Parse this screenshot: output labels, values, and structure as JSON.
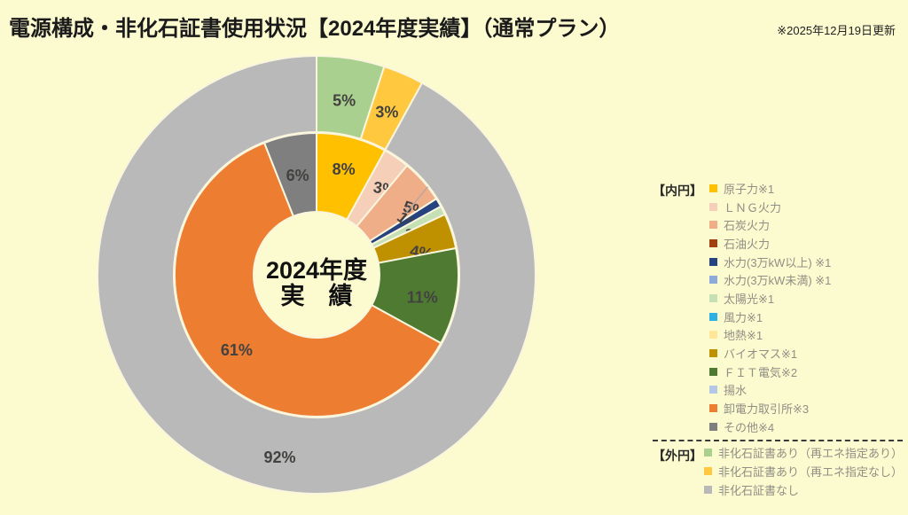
{
  "title": "電源構成・非化石証書使用状況【2024年度実績】（通常プラン）",
  "update_note": "※2025年12月19日更新",
  "center_label": {
    "line1": "2024年度",
    "line2": "実　績"
  },
  "legend": {
    "inner_group_label": "【内円】",
    "outer_group_label": "【外円】"
  },
  "colors": {
    "background": "#FCFACF",
    "slice_border": "#FAF6DE",
    "slice_label_text": "#434240",
    "legend_text": "#8F8F85",
    "callout_line": "#A6A6A6"
  },
  "chart_data": {
    "type": "nested-donut",
    "start_angle_deg": 0,
    "direction": "clockwise",
    "rings": [
      {
        "id": "inner",
        "name": "電源構成（内円）",
        "items": [
          {
            "label": "原子力※1",
            "value": 8,
            "display": "8%",
            "color": "#FFC000"
          },
          {
            "label": "ＬＮＧ火力",
            "value": 3,
            "display": "3%",
            "color": "#F5CFB8"
          },
          {
            "label": "石炭火力",
            "value": 5,
            "display": "5%",
            "color": "#F0AE88"
          },
          {
            "label": "石油火力",
            "value": 0,
            "display": "0%",
            "color": "#A3400F"
          },
          {
            "label": "水力(3万kW以上) ※1",
            "value": 1,
            "display": "1%",
            "color": "#26437F"
          },
          {
            "label": "水力(3万kW未満) ※1",
            "value": 0,
            "display": "0%",
            "color": "#8EAADB"
          },
          {
            "label": "太陽光※1",
            "value": 1,
            "display": "1%",
            "color": "#C5E0B4"
          },
          {
            "label": "風力※1",
            "value": 0,
            "display": "0%",
            "color": "#2FB0E3"
          },
          {
            "label": "地熱※1",
            "value": 0,
            "display": "0%",
            "color": "#FFE699"
          },
          {
            "label": "バイオマス※1",
            "value": 4,
            "display": "4%",
            "color": "#BF9000"
          },
          {
            "label": "ＦＩＴ電気※2",
            "value": 11,
            "display": "11%",
            "color": "#4E7B31"
          },
          {
            "label": "揚水",
            "value": 0,
            "display": "0%",
            "color": "#B4C7E7"
          },
          {
            "label": "卸電力取引所※3",
            "value": 61,
            "display": "61%",
            "color": "#ED7D31"
          },
          {
            "label": "その他※4",
            "value": 6,
            "display": "6%",
            "color": "#7F7F7F"
          }
        ]
      },
      {
        "id": "outer",
        "name": "非化石証書使用状況（外円）",
        "items": [
          {
            "label": "非化石証書あり（再エネ指定あり）",
            "value": 5,
            "display": "5%",
            "color": "#A9D08E"
          },
          {
            "label": "非化石証書あり（再エネ指定なし）",
            "value": 3,
            "display": "3%",
            "color": "#FFC83E"
          },
          {
            "label": "非化石証書なし",
            "value": 92,
            "display": "92%",
            "color": "#B9B9B9"
          }
        ]
      }
    ]
  }
}
